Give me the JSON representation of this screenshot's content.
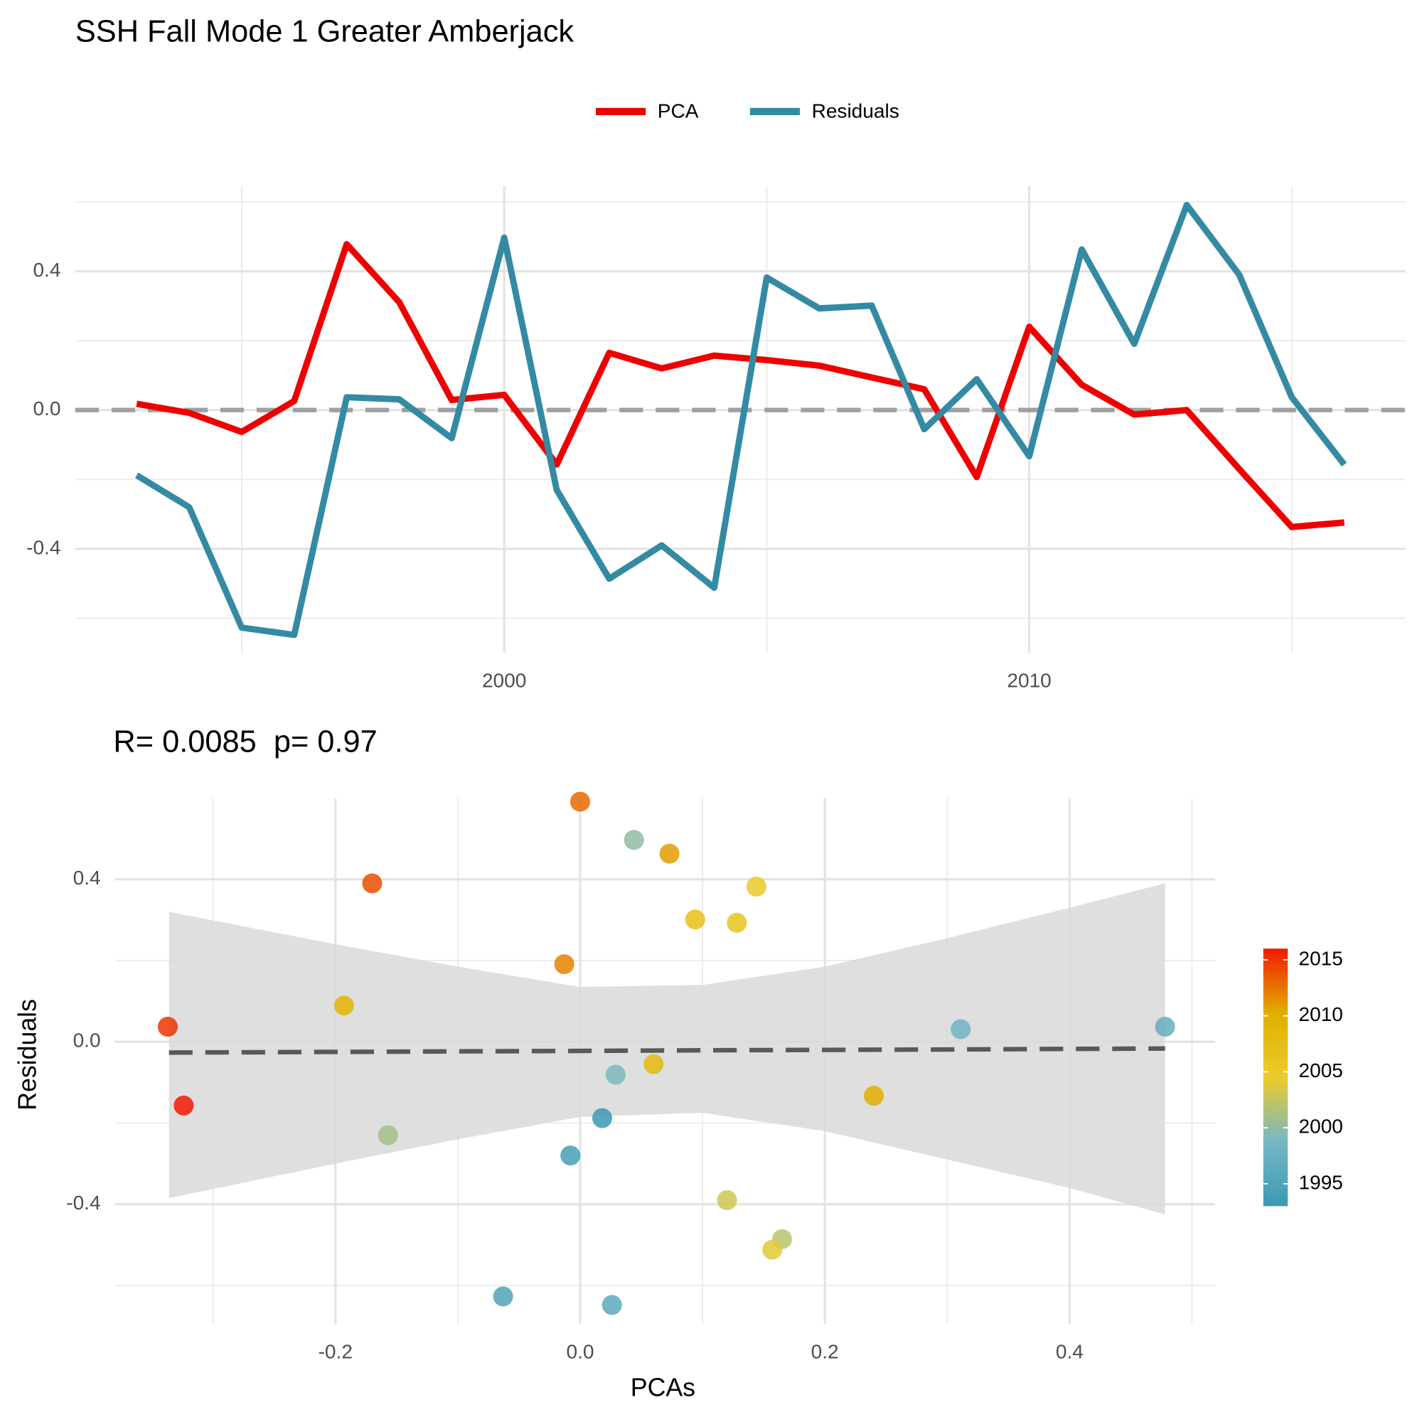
{
  "chart_data": [
    {
      "type": "line",
      "title": "SSH Fall Mode 1 Greater Amberjack",
      "x": [
        1993,
        1994,
        1995,
        1996,
        1997,
        1998,
        1999,
        2000,
        2001,
        2002,
        2003,
        2004,
        2005,
        2006,
        2007,
        2008,
        2009,
        2010,
        2011,
        2012,
        2013,
        2014,
        2015,
        2016
      ],
      "series": [
        {
          "name": "PCA",
          "color": "#ee0000",
          "values": [
            0.018,
            -0.008,
            -0.063,
            0.026,
            0.478,
            0.311,
            0.029,
            0.044,
            -0.157,
            0.165,
            0.12,
            0.157,
            0.144,
            0.128,
            0.094,
            0.06,
            -0.193,
            0.24,
            0.073,
            -0.013,
            0.0,
            -0.17,
            -0.337,
            -0.324
          ]
        },
        {
          "name": "Residuals",
          "color": "#358aa3",
          "values": [
            -0.188,
            -0.28,
            -0.627,
            -0.648,
            0.037,
            0.031,
            -0.081,
            0.497,
            -0.23,
            -0.486,
            -0.39,
            -0.512,
            0.382,
            0.293,
            0.301,
            -0.055,
            0.089,
            -0.133,
            0.463,
            0.191,
            0.591,
            0.39,
            0.037,
            -0.157
          ]
        }
      ],
      "hline": 0,
      "xlim": [
        1991.83,
        2017.17
      ],
      "xticks": [
        2000,
        2010
      ],
      "ylim": [
        -0.7,
        0.646
      ],
      "yticks": [
        -0.4,
        {
          "value": 0,
          "label": "0.0"
        },
        0.4
      ],
      "grid": true,
      "legend": "top"
    },
    {
      "type": "scatter",
      "subtitle": "R= 0.0085  p= 0.97",
      "xlabel": "PCAs",
      "ylabel": "Residuals",
      "x": [
        0.018,
        -0.008,
        -0.063,
        0.026,
        0.478,
        0.311,
        0.029,
        0.044,
        -0.157,
        0.165,
        0.12,
        0.157,
        0.144,
        0.128,
        0.094,
        0.06,
        -0.193,
        0.24,
        0.073,
        -0.013,
        0.0,
        -0.17,
        -0.337,
        -0.324
      ],
      "y": [
        -0.188,
        -0.28,
        -0.627,
        -0.648,
        0.037,
        0.031,
        -0.081,
        0.497,
        -0.23,
        -0.486,
        -0.39,
        -0.512,
        0.382,
        0.293,
        0.301,
        -0.055,
        0.089,
        -0.133,
        0.463,
        0.191,
        0.591,
        0.39,
        0.037,
        -0.157
      ],
      "color_values": [
        1993,
        1994,
        1995,
        1996,
        1997,
        1998,
        1999,
        2000,
        2001,
        2002,
        2003,
        2004,
        2005,
        2006,
        2007,
        2008,
        2009,
        2010,
        2011,
        2012,
        2013,
        2014,
        2015,
        2016
      ],
      "colors": [
        "#3b9ab2",
        "#78b7c5",
        "#ebcc2a",
        "#e1af00",
        "#f21a00"
      ],
      "colorbar_lim": [
        1993,
        2016
      ],
      "colorbar_ticks": [
        1995,
        2000,
        2005,
        2010,
        2015
      ],
      "fit": {
        "x": [
          -0.336,
          -0.2,
          -0.1,
          0.0,
          0.1,
          0.2,
          0.3,
          0.4,
          0.478
        ],
        "y": [
          -0.0266,
          -0.025,
          -0.0237,
          -0.0225,
          -0.021,
          -0.02,
          -0.019,
          -0.0176,
          -0.0166
        ],
        "lower": [
          -0.385,
          -0.3,
          -0.24,
          -0.185,
          -0.175,
          -0.22,
          -0.29,
          -0.36,
          -0.425
        ],
        "upper": [
          0.32,
          0.24,
          0.185,
          0.135,
          0.14,
          0.185,
          0.255,
          0.33,
          0.39
        ]
      },
      "xlim": [
        -0.38,
        0.519
      ],
      "xticks": [
        -0.2,
        {
          "value": 0,
          "label": "0.0"
        },
        0.2,
        0.4
      ],
      "ylim": [
        -0.695,
        0.6
      ],
      "yticks": [
        -0.4,
        {
          "value": 0,
          "label": "0.0"
        },
        0.4
      ],
      "grid": true
    }
  ]
}
